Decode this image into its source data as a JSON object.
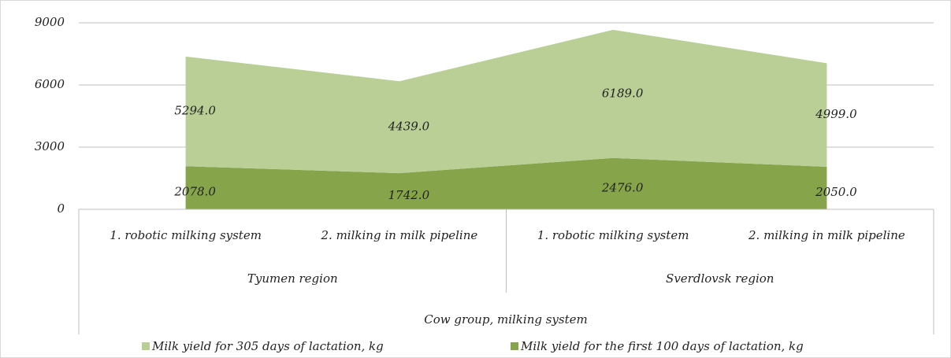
{
  "chart_data": {
    "type": "stacked_area",
    "categories": [
      "1. robotic milking system",
      "2. milking in milk pipeline",
      "1. robotic milking system",
      "2. milking in milk pipeline"
    ],
    "category_groups": [
      "Tyumen region",
      "Tyumen region",
      "Sverdlovsk region",
      "Sverdlovsk region"
    ],
    "x_label": "Cow group, milking system",
    "series": [
      {
        "name": "Milk yield for 305 days of lactation, kg",
        "color": "#b9cf96",
        "values": [
          5294,
          4439,
          6189,
          4999
        ],
        "value_labels": [
          "5294.0",
          "4439.0",
          "6189.0",
          "4999.0"
        ]
      },
      {
        "name": "Milk yield for the first 100 days of lactation, kg",
        "color": "#86a44a",
        "values": [
          2078,
          1742,
          2476,
          2050
        ],
        "value_labels": [
          "2078.0",
          "1742.0",
          "2476.0",
          "2050.0"
        ]
      }
    ],
    "ylim": [
      0,
      9000
    ],
    "yticks": [
      0,
      3000,
      6000,
      9000
    ],
    "grid": true,
    "legend": "bottom"
  }
}
